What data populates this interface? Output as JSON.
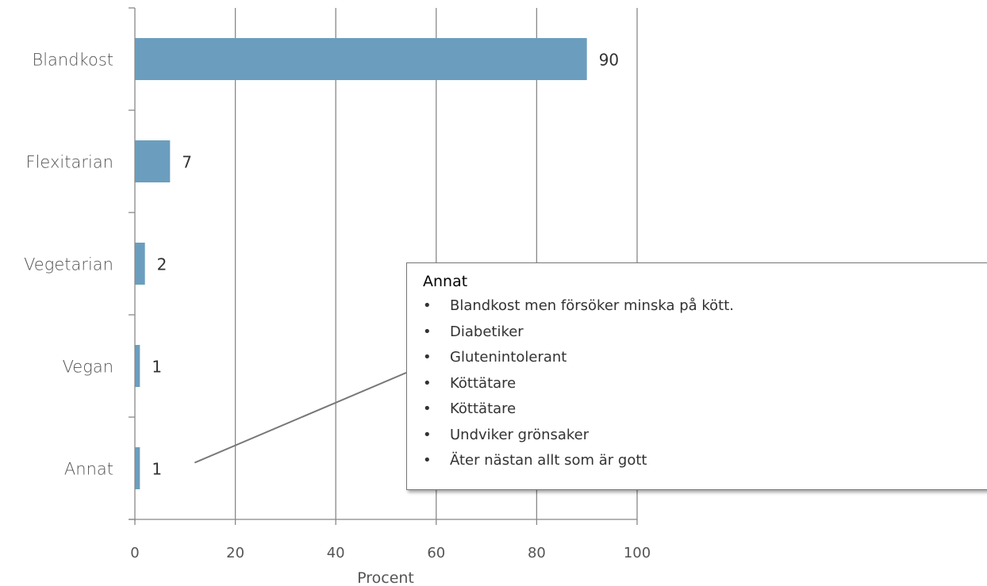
{
  "chart_data": {
    "type": "bar",
    "orientation": "horizontal",
    "categories": [
      "Blandkost",
      "Flexitarian",
      "Vegetarian",
      "Vegan",
      "Annat"
    ],
    "values": [
      90,
      7,
      2,
      1,
      1
    ],
    "data_labels": [
      "90",
      "7",
      "2",
      "1",
      "1"
    ],
    "xlabel": "Procent",
    "ylabel": "",
    "xlim": [
      0,
      100
    ],
    "xticks": [
      "0",
      "20",
      "40",
      "60",
      "80",
      "100"
    ],
    "grid": "vertical",
    "bar_color": "#6b9ebe"
  },
  "callout": {
    "title": "Annat",
    "items": [
      "Blandkost men försöker minska på kött.",
      "Diabetiker",
      "Glutenintolerant",
      "Köttätare",
      "Köttätare",
      "Undviker grönsaker",
      "Äter nästan allt som är gott"
    ]
  }
}
